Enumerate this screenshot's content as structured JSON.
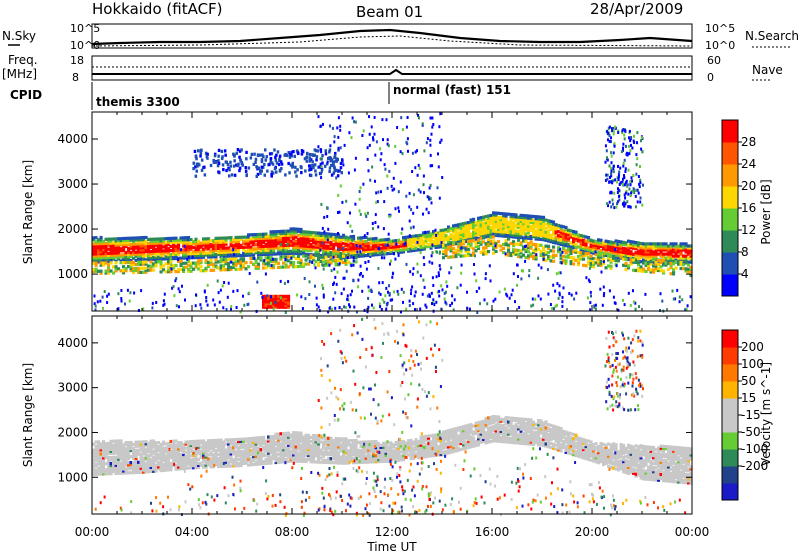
{
  "header": {
    "title": "Hokkaido (fitACF)",
    "beam": "Beam 01",
    "date": "28/Apr/2009"
  },
  "summary": {
    "nsky_label": "N.Sky",
    "nsearch_label": "N.Search",
    "freq_label": "Freq.",
    "freq_unit": "[MHz]",
    "nave_label": "Nave",
    "cpid_label": "CPID",
    "count_ticks_left": [
      "10^5",
      "10^0"
    ],
    "count_ticks_right": [
      "10^5",
      "10^0"
    ],
    "freq_ticks": [
      "18",
      "8"
    ],
    "nave_ticks": [
      "60",
      "0"
    ],
    "cpid_segments": [
      {
        "name": "themis 3300",
        "start_hour": 0,
        "end_hour": 11.9
      },
      {
        "name": "normal (fast) 151",
        "start_hour": 11.9,
        "end_hour": 24
      }
    ]
  },
  "time_axis": {
    "label": "Time UT",
    "ticks": [
      "00:00",
      "04:00",
      "08:00",
      "12:00",
      "16:00",
      "20:00",
      "00:00"
    ],
    "range_hours": [
      0,
      24
    ]
  },
  "range_axis": {
    "label": "Slant Range [km]",
    "ticks": [
      1000,
      2000,
      3000,
      4000
    ],
    "range": [
      180,
      4600
    ]
  },
  "colors": {
    "power_scale": [
      "#0000ff",
      "#1f4fb4",
      "#2e8b57",
      "#66cc33",
      "#ffd700",
      "#ff9900",
      "#ff5500",
      "#ff0000"
    ],
    "velocity_scale": [
      "#1a1ac8",
      "#20428a",
      "#2e8b57",
      "#66cc33",
      "#c8c8c8",
      "#c8c8c8",
      "#ffb400",
      "#ff7800",
      "#ff3c00",
      "#ff0000"
    ]
  },
  "chart_data": [
    {
      "type": "heatmap",
      "name": "Power",
      "zlabel": "Power [dB]",
      "ticks": [
        4,
        8,
        12,
        16,
        20,
        24,
        28
      ],
      "zlim": [
        0,
        32
      ],
      "xlim": [
        0,
        24
      ],
      "ylim": [
        180,
        4600
      ],
      "features": [
        {
          "x": [
            0,
            2,
            4,
            6,
            8,
            10,
            12,
            14,
            16,
            18,
            20,
            22,
            24
          ],
          "y_low": [
            1300,
            1350,
            1400,
            1450,
            1500,
            1400,
            1500,
            1650,
            1900,
            1800,
            1500,
            1300,
            1300
          ],
          "y_high": [
            1850,
            1850,
            1850,
            1900,
            2050,
            1900,
            1800,
            2050,
            2400,
            2300,
            1800,
            1750,
            1700
          ],
          "value": 28
        },
        {
          "x": [
            0,
            4,
            8,
            12,
            16,
            20,
            24
          ],
          "y_low": [
            1050,
            1100,
            1200,
            1300,
            1500,
            1200,
            1000
          ],
          "y_high": [
            1300,
            1350,
            1450,
            1500,
            1900,
            1500,
            1300
          ],
          "value": 14
        },
        {
          "x": [
            6.8,
            7.8
          ],
          "y_low": [
            300,
            300
          ],
          "y_high": [
            550,
            550
          ],
          "value": 28
        },
        {
          "x": [
            4,
            10
          ],
          "y_low": [
            3200,
            3200
          ],
          "y_high": [
            3700,
            3800
          ],
          "value": 6
        }
      ]
    },
    {
      "type": "heatmap",
      "name": "Velocity",
      "zlabel": "Velocity [m s^-1]",
      "ticks": [
        200,
        100,
        50,
        15,
        -15,
        -50,
        -100,
        -200
      ],
      "zlim": [
        -250,
        250
      ],
      "xlim": [
        0,
        24
      ],
      "ylim": [
        180,
        4600
      ],
      "features": [
        {
          "x": [
            0,
            2,
            4,
            6,
            8,
            10,
            12,
            14,
            16,
            18,
            20,
            22,
            24
          ],
          "y_low": [
            1100,
            1150,
            1250,
            1300,
            1400,
            1350,
            1400,
            1550,
            1850,
            1750,
            1400,
            1000,
            900
          ],
          "y_high": [
            1850,
            1850,
            1850,
            1900,
            2050,
            1900,
            1800,
            2050,
            2400,
            2300,
            1800,
            1750,
            1700
          ],
          "value": 0
        }
      ]
    }
  ]
}
